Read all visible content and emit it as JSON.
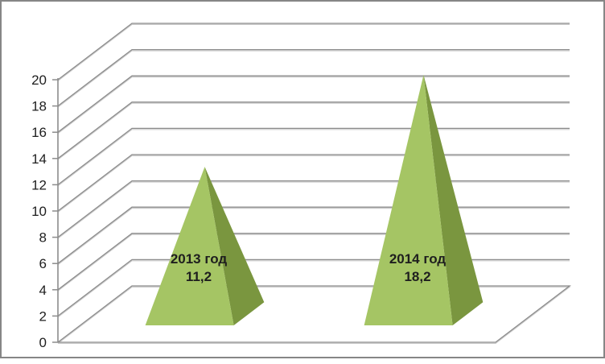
{
  "chart_data": {
    "type": "bar",
    "subtype": "pyramid-3d",
    "title": "",
    "xlabel": "",
    "ylabel": "",
    "categories": [
      "2013 год",
      "2014 год"
    ],
    "values": [
      11.2,
      18.2
    ],
    "value_labels": [
      "11,2",
      "18,2"
    ],
    "ytick_labels": [
      "0",
      "2",
      "4",
      "6",
      "8",
      "10",
      "12",
      "14",
      "16",
      "18",
      "20"
    ],
    "ylim": [
      0,
      20
    ],
    "ystep": 2,
    "grid": true,
    "legend": false,
    "colors": {
      "pyramid_front": "#a5c564",
      "pyramid_side": "#7a963f",
      "gridline": "#8c8c8c",
      "gridline_highlight": "#cacaca",
      "axis": "#8c8c8c",
      "text": "#1e1e1e",
      "frame_border": "#868686",
      "background": "#ffffff"
    }
  }
}
